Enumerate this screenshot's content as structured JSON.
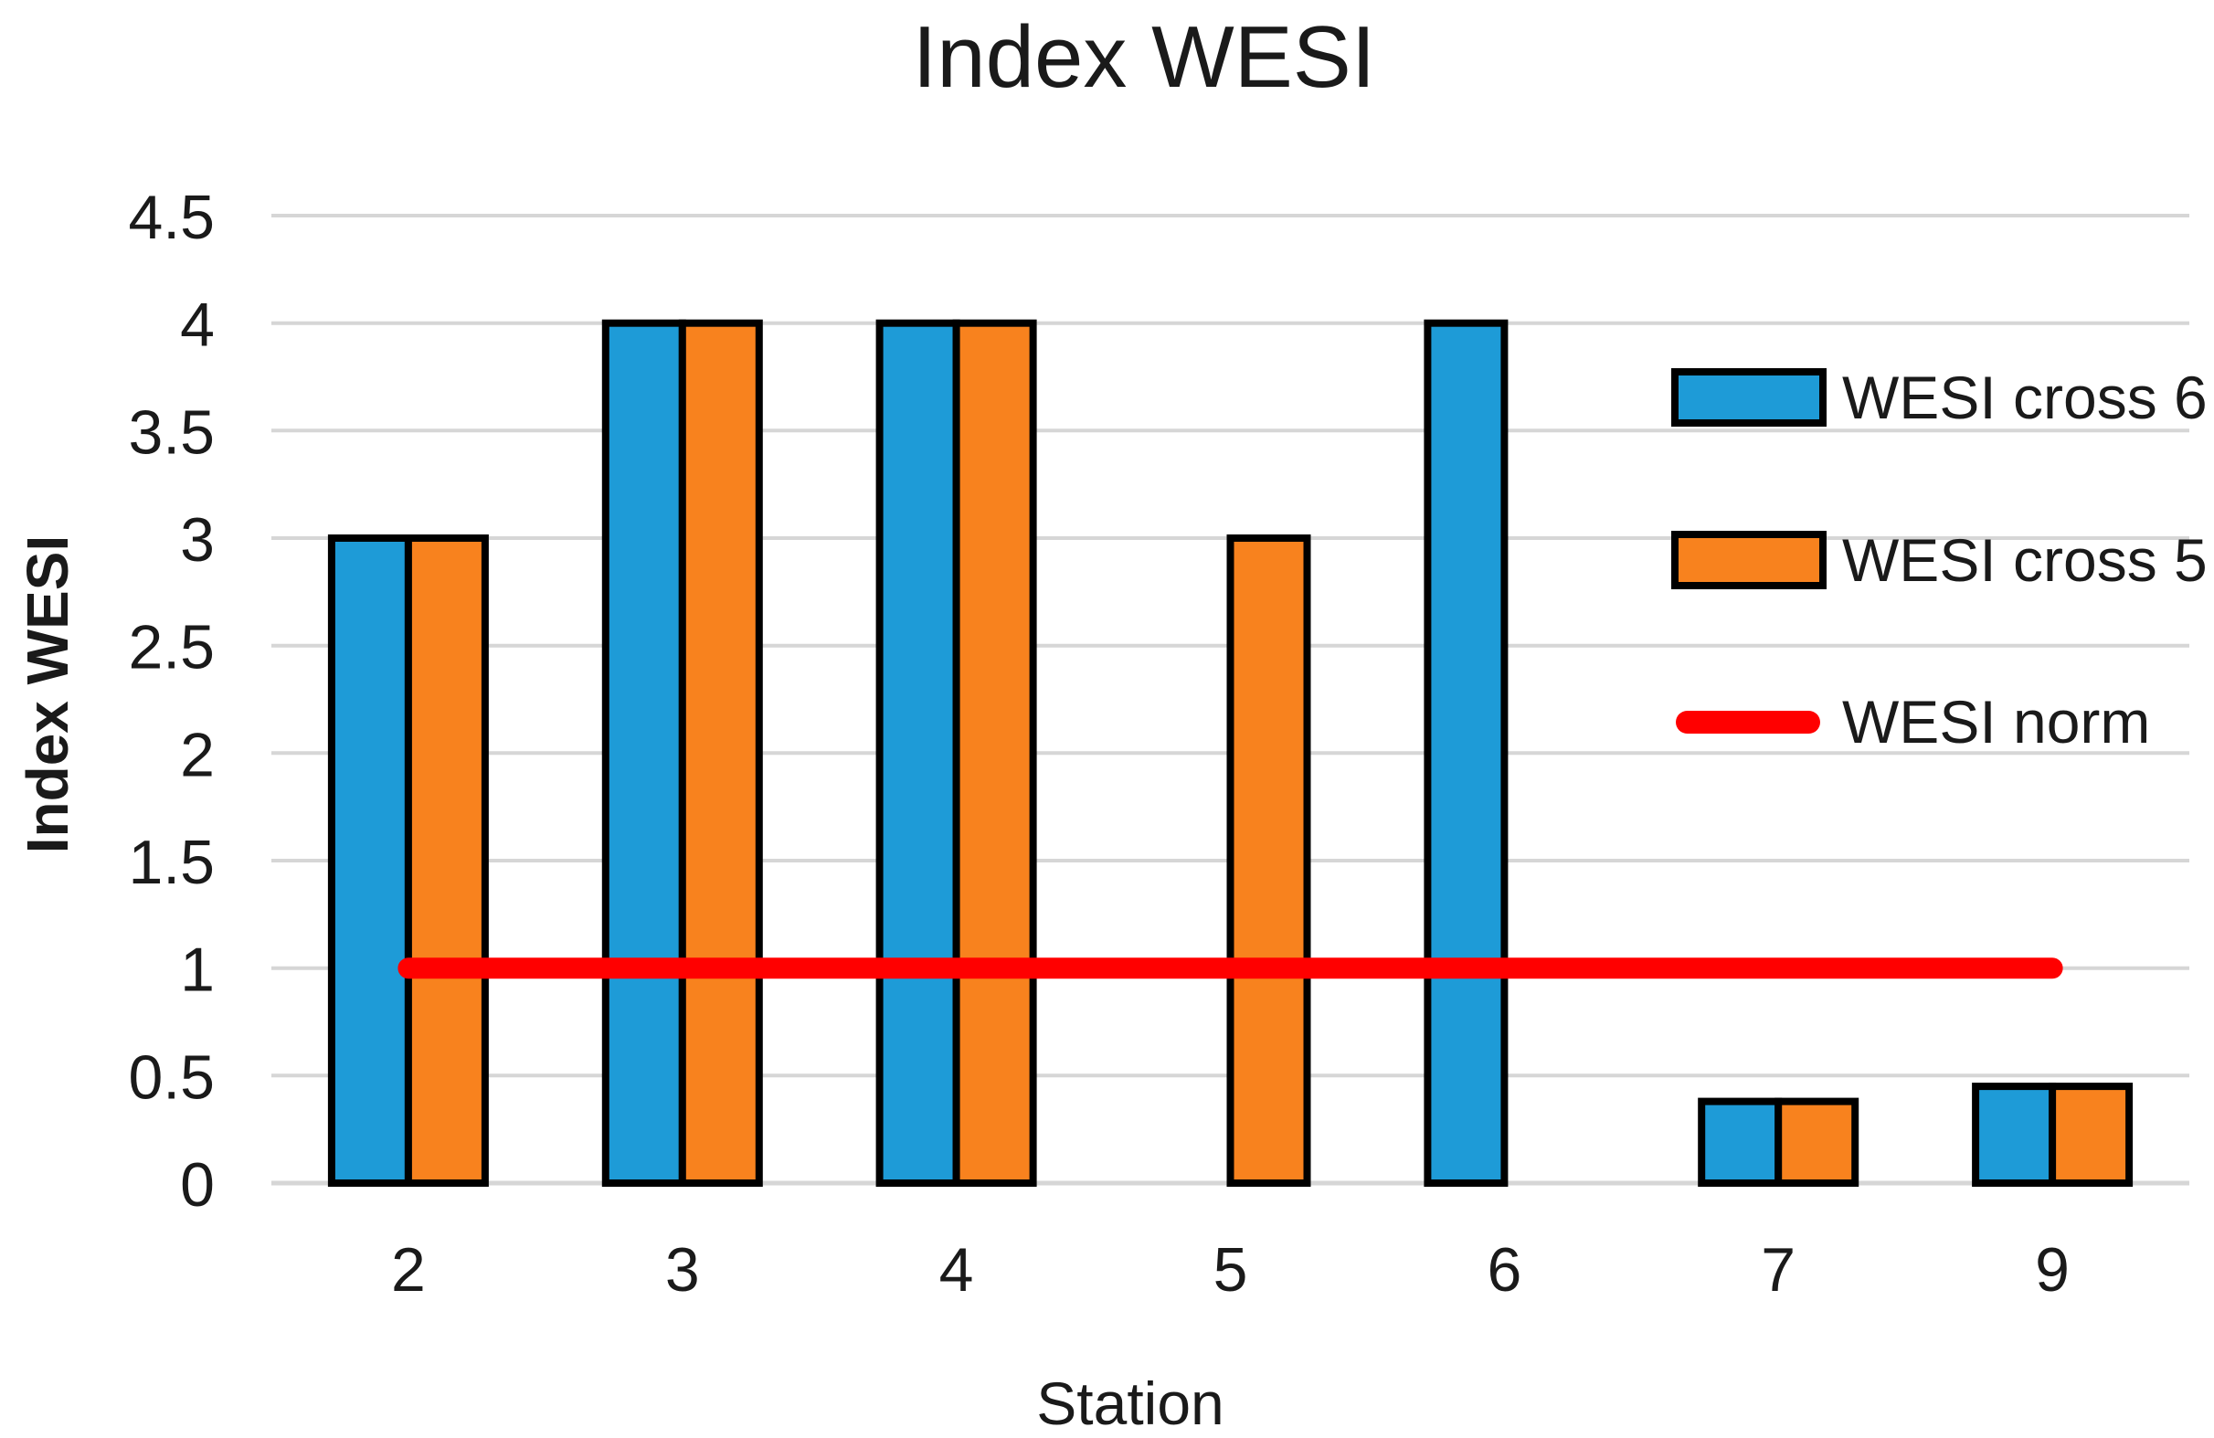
{
  "chart_data": {
    "type": "bar",
    "title": "Index WESI",
    "xlabel": "Station",
    "ylabel": "Index WESI",
    "categories": [
      "2",
      "3",
      "4",
      "5",
      "6",
      "7",
      "9"
    ],
    "series": [
      {
        "name": "WESI cross 6",
        "type": "bar",
        "color": "#1E9BD7",
        "values": [
          3,
          4,
          4,
          null,
          4,
          0.38,
          0.45
        ]
      },
      {
        "name": "WESI cross 5",
        "type": "bar",
        "color": "#F8821E",
        "values": [
          3,
          4,
          4,
          3,
          null,
          0.38,
          0.45
        ]
      },
      {
        "name": "WESI norm",
        "type": "line",
        "color": "#FF0000",
        "values": [
          1,
          1,
          1,
          1,
          1,
          1,
          1
        ]
      }
    ],
    "ylim": [
      0,
      4.5
    ],
    "ytick_step": 0.5,
    "ytick_labels": [
      "0",
      "0.5",
      "1",
      "1.5",
      "2",
      "2.5",
      "3",
      "3.5",
      "4",
      "4.5"
    ],
    "grid": true,
    "gridline_color": "#D6D6D6",
    "bar_outline_color": "#000000",
    "text_color": "#1a1a1a",
    "legend_position": "right"
  }
}
